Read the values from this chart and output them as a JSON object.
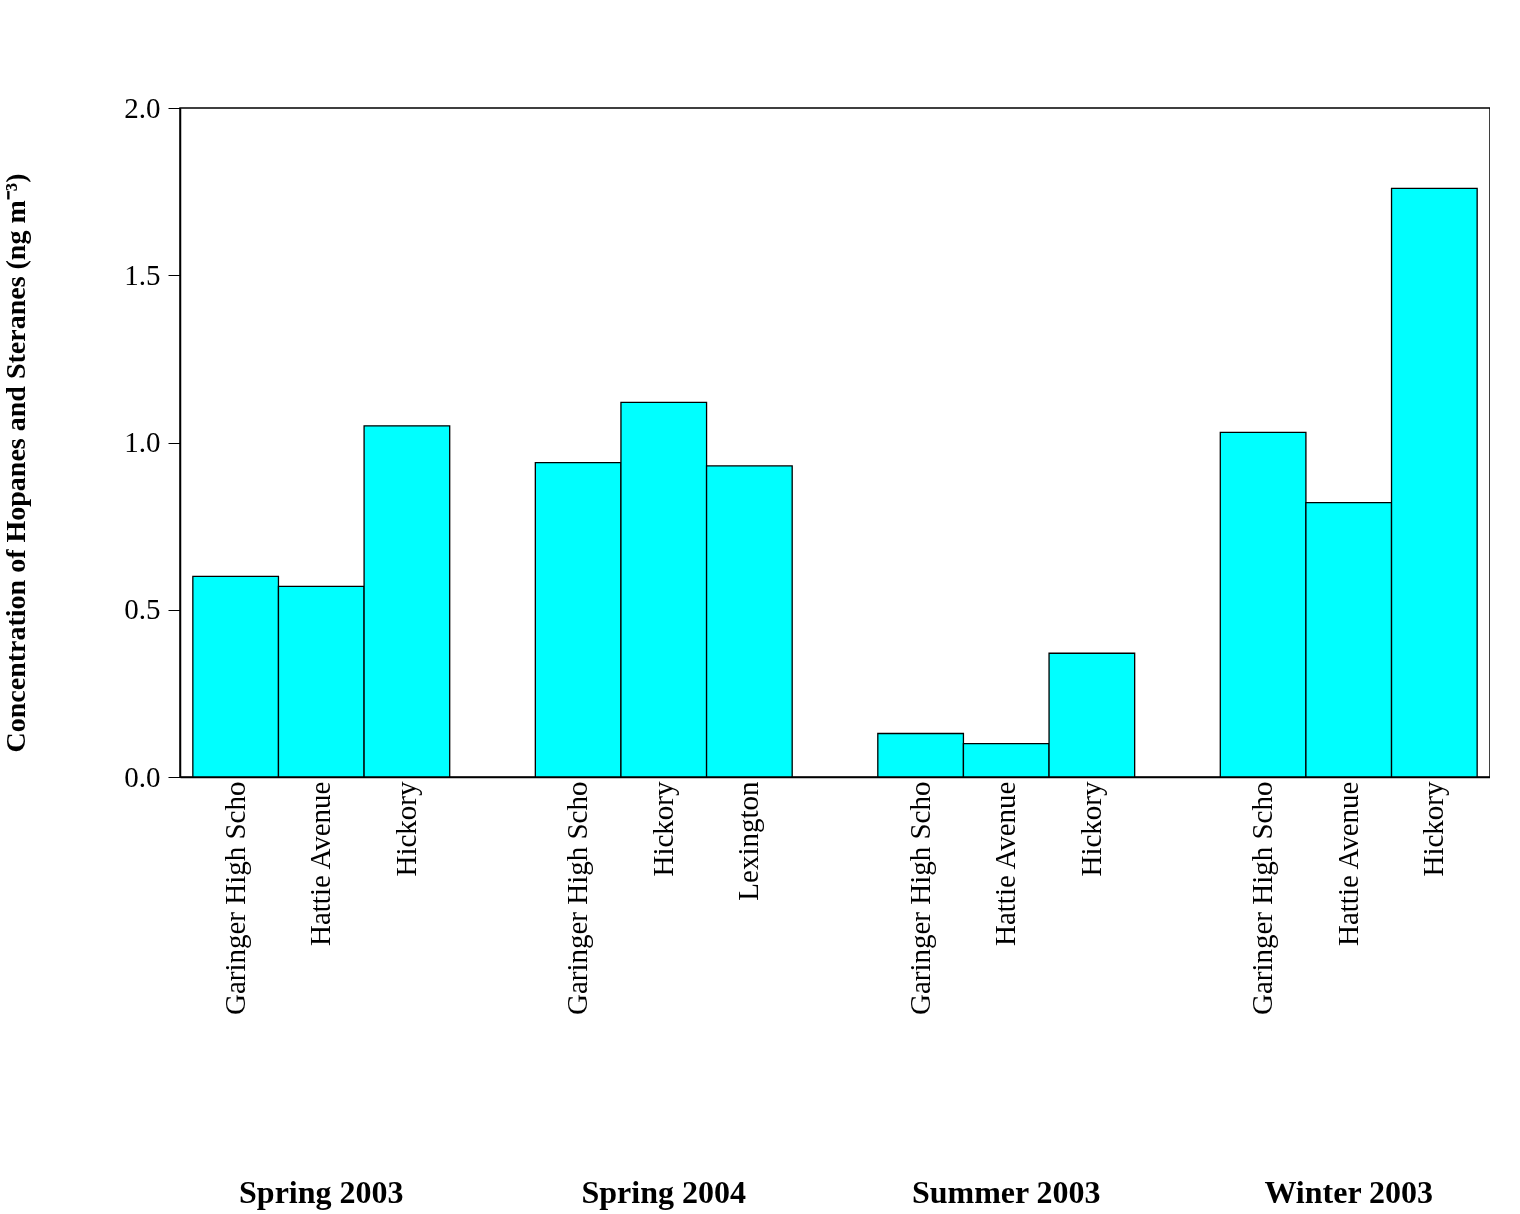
{
  "chart_data": {
    "type": "bar",
    "ylabel": "Concentration of Hopanes and Steranes (ng m⁻³)",
    "categories": [
      "Garinger High Scho",
      "Hattie Avenue",
      "Hickory",
      null,
      "Garinger High Scho",
      "Hickory",
      "Lexington",
      null,
      "Garinger High Scho",
      "Hattie Avenue",
      "Hickory",
      null,
      "Garinger High Scho",
      "Hattie Avenue",
      "Hickory"
    ],
    "values": [
      0.6,
      0.57,
      1.05,
      null,
      0.94,
      1.12,
      0.93,
      null,
      0.13,
      0.1,
      0.37,
      null,
      1.03,
      0.82,
      1.76
    ],
    "color": "#00ffff",
    "ylim": [
      0,
      2
    ],
    "yticks": [
      {
        "value": 0,
        "label": "0.0"
      },
      {
        "value": 0.5,
        "label": "0.5"
      },
      {
        "value": 1,
        "label": "1.0"
      },
      {
        "value": 1.5,
        "label": "1.5"
      },
      {
        "value": 2,
        "label": "2.0"
      }
    ],
    "annotations": [
      "Spring 2003",
      "Spring 2004",
      "Summer 2003",
      "Winter 2003"
    ],
    "grid": false
  }
}
